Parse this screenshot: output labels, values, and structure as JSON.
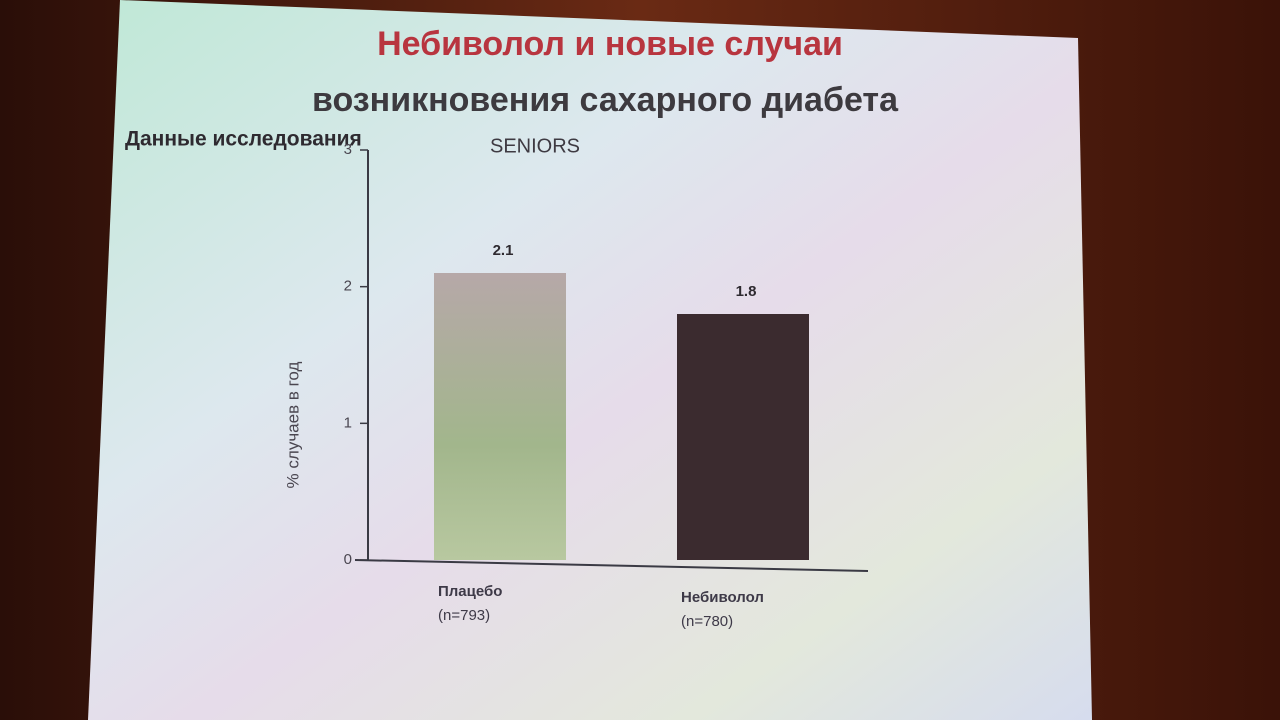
{
  "chart_data": {
    "type": "bar",
    "title": [
      "Небиволол и новые случаи",
      "возникновения сахарного диабета"
    ],
    "subtitle": [
      "Данные исследования",
      "SENIORS"
    ],
    "y_label": "% случаев в год",
    "categories": [
      "Плацебо",
      "Небиволол"
    ],
    "category_notes": [
      "(n=793)",
      "(n=780)"
    ],
    "values": [
      2.1,
      1.8
    ],
    "colors": [
      "#a9a88e",
      "#3b2b2f"
    ],
    "ylim": [
      0,
      3
    ],
    "yticks": [
      0,
      1,
      2,
      3
    ],
    "grid": false
  }
}
